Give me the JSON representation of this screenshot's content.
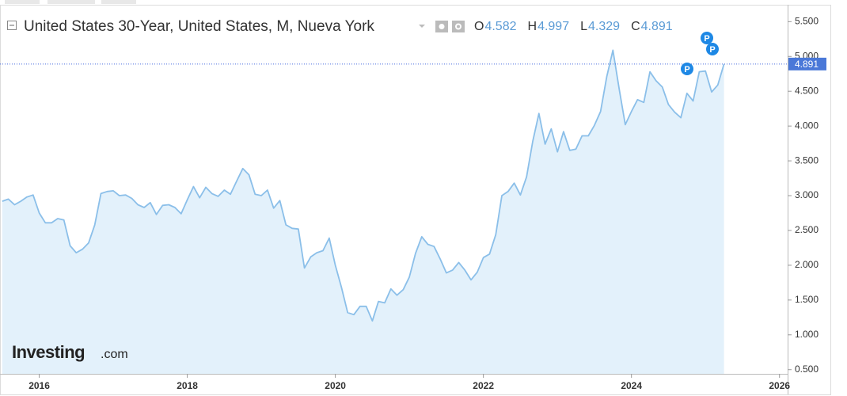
{
  "chart_data": {
    "type": "area",
    "title": "United States 30-Year, United States, M, Nueva York",
    "ohlc": [
      {
        "key": "O",
        "value": 4.582
      },
      {
        "key": "H",
        "value": 4.997
      },
      {
        "key": "L",
        "value": 4.329
      },
      {
        "key": "C",
        "value": 4.891
      }
    ],
    "last_value": 4.891,
    "event_marker_labels": [
      "P",
      "P",
      "P"
    ],
    "logo": {
      "brand": "Investing",
      "suffix": ".com"
    },
    "color": "#8bbfe9",
    "fill": "#e3f1fb",
    "x": [
      2015.5,
      2015.583,
      2015.667,
      2015.75,
      2015.833,
      2015.917,
      2016,
      2016.083,
      2016.167,
      2016.25,
      2016.333,
      2016.417,
      2016.5,
      2016.583,
      2016.667,
      2016.75,
      2016.833,
      2016.917,
      2017,
      2017.083,
      2017.167,
      2017.25,
      2017.333,
      2017.417,
      2017.5,
      2017.583,
      2017.667,
      2017.75,
      2017.833,
      2017.917,
      2018,
      2018.083,
      2018.167,
      2018.25,
      2018.333,
      2018.417,
      2018.5,
      2018.583,
      2018.667,
      2018.75,
      2018.833,
      2018.917,
      2019,
      2019.083,
      2019.167,
      2019.25,
      2019.333,
      2019.417,
      2019.5,
      2019.583,
      2019.667,
      2019.75,
      2019.833,
      2019.917,
      2020,
      2020.083,
      2020.167,
      2020.25,
      2020.333,
      2020.417,
      2020.5,
      2020.583,
      2020.667,
      2020.75,
      2020.833,
      2020.917,
      2021,
      2021.083,
      2021.167,
      2021.25,
      2021.333,
      2021.417,
      2021.5,
      2021.583,
      2021.667,
      2021.75,
      2021.833,
      2021.917,
      2022,
      2022.083,
      2022.167,
      2022.25,
      2022.333,
      2022.417,
      2022.5,
      2022.583,
      2022.667,
      2022.75,
      2022.833,
      2022.917,
      2023,
      2023.083,
      2023.167,
      2023.25,
      2023.333,
      2023.417,
      2023.5,
      2023.583,
      2023.667,
      2023.75,
      2023.833,
      2023.917,
      2024,
      2024.083,
      2024.167,
      2024.25,
      2024.333,
      2024.417,
      2024.5,
      2024.583,
      2024.667,
      2024.75,
      2024.833,
      2024.917,
      2025,
      2025.083,
      2025.167,
      2025.25
    ],
    "values": [
      2.92,
      2.95,
      2.87,
      2.92,
      2.98,
      3.01,
      2.75,
      2.61,
      2.61,
      2.67,
      2.65,
      2.28,
      2.18,
      2.23,
      2.32,
      2.58,
      3.03,
      3.06,
      3.07,
      3.0,
      3.01,
      2.96,
      2.87,
      2.83,
      2.9,
      2.73,
      2.86,
      2.87,
      2.83,
      2.74,
      2.94,
      3.13,
      2.97,
      3.12,
      3.03,
      2.99,
      3.08,
      3.02,
      3.21,
      3.39,
      3.3,
      3.02,
      3.0,
      3.08,
      2.82,
      2.93,
      2.58,
      2.53,
      2.52,
      1.96,
      2.12,
      2.18,
      2.21,
      2.39,
      2.0,
      1.68,
      1.32,
      1.29,
      1.41,
      1.41,
      1.2,
      1.48,
      1.46,
      1.66,
      1.57,
      1.65,
      1.83,
      2.17,
      2.41,
      2.3,
      2.27,
      2.09,
      1.89,
      1.93,
      2.04,
      1.93,
      1.79,
      1.9,
      2.11,
      2.16,
      2.44,
      3.0,
      3.06,
      3.18,
      3.01,
      3.27,
      3.78,
      4.18,
      3.74,
      3.96,
      3.63,
      3.92,
      3.65,
      3.67,
      3.86,
      3.86,
      4.01,
      4.21,
      4.71,
      5.09,
      4.54,
      4.02,
      4.21,
      4.38,
      4.34,
      4.78,
      4.65,
      4.56,
      4.31,
      4.2,
      4.12,
      4.47,
      4.36,
      4.78,
      4.79,
      4.49,
      4.59,
      4.891
    ],
    "xlim": [
      2015.47,
      2026.11
    ],
    "xticks": [
      2016,
      2018,
      2020,
      2022,
      2024,
      2026
    ],
    "ylim": [
      0.44,
      5.72
    ],
    "yticks": [
      {
        "value": 0.5,
        "label": "0.500"
      },
      {
        "value": 1,
        "label": "1.000"
      },
      {
        "value": 1.5,
        "label": "1.500"
      },
      {
        "value": 2,
        "label": "2.000"
      },
      {
        "value": 2.5,
        "label": "2.500"
      },
      {
        "value": 3,
        "label": "3.000"
      },
      {
        "value": 3.5,
        "label": "3.500"
      },
      {
        "value": 4,
        "label": "4.000"
      },
      {
        "value": 4.5,
        "label": "4.500"
      },
      {
        "value": 5,
        "label": "5.000"
      },
      {
        "value": 5.5,
        "label": "5.500"
      }
    ]
  }
}
